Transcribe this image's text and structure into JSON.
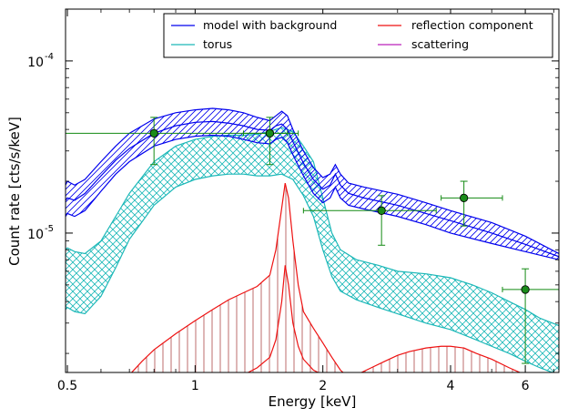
{
  "chart_data": {
    "type": "line",
    "title": "",
    "xlabel": "Energy [keV]",
    "ylabel": "Count rate [cts/s/keV]",
    "x_scale": "log",
    "y_scale": "log",
    "xlim": [
      0.495,
      7.2
    ],
    "ylim": [
      1.55e-06,
      0.0002
    ],
    "x_ticks": [
      {
        "value": 0.5,
        "label": "0.5"
      },
      {
        "value": 1,
        "label": "1"
      },
      {
        "value": 2,
        "label": "2"
      },
      {
        "value": 4,
        "label": "4"
      },
      {
        "value": 6,
        "label": "6"
      }
    ],
    "y_ticks": [
      {
        "value": 1e-05,
        "label_base": "10",
        "label_exp": "-5"
      },
      {
        "value": 0.0001,
        "label_base": "10",
        "label_exp": "-4"
      }
    ],
    "legend": {
      "placement": "top-right",
      "columns": 2,
      "entries": [
        {
          "name": "model with background",
          "color": "#0000ee"
        },
        {
          "name": "torus",
          "color": "#1cb8b8"
        },
        {
          "name": "reflection component",
          "color": "#ee1111"
        },
        {
          "name": "scattering",
          "color": "#bb22bb"
        }
      ]
    },
    "series": [
      {
        "name": "model with background",
        "color": "#0000ee",
        "style": "band-hatched",
        "x": [
          0.495,
          0.5,
          0.52,
          0.55,
          0.6,
          0.65,
          0.7,
          0.8,
          0.9,
          1.0,
          1.1,
          1.2,
          1.3,
          1.4,
          1.5,
          1.55,
          1.6,
          1.65,
          1.7,
          1.8,
          1.9,
          2.0,
          2.08,
          2.14,
          2.2,
          2.3,
          2.5,
          3.0,
          3.5,
          4.0,
          5.0,
          6.0,
          7.2
        ],
        "upper": [
          1.9e-05,
          2e-05,
          1.9e-05,
          2.05e-05,
          2.6e-05,
          3.2e-05,
          3.8e-05,
          4.6e-05,
          5e-05,
          5.2e-05,
          5.3e-05,
          5.2e-05,
          5e-05,
          4.7e-05,
          4.5e-05,
          4.8e-05,
          5.1e-05,
          4.8e-05,
          4e-05,
          3e-05,
          2.4e-05,
          2.1e-05,
          2.2e-05,
          2.5e-05,
          2.2e-05,
          1.95e-05,
          1.85e-05,
          1.68e-05,
          1.5e-05,
          1.35e-05,
          1.15e-05,
          9.6e-06,
          7.6e-06
        ],
        "mid": [
          1.55e-05,
          1.6e-05,
          1.55e-05,
          1.7e-05,
          2.15e-05,
          2.65e-05,
          3.1e-05,
          3.8e-05,
          4.2e-05,
          4.4e-05,
          4.45e-05,
          4.35e-05,
          4.2e-05,
          4e-05,
          3.95e-05,
          4.2e-05,
          4.3e-05,
          4e-05,
          3.4e-05,
          2.55e-05,
          2.05e-05,
          1.8e-05,
          1.9e-05,
          2.2e-05,
          1.9e-05,
          1.7e-05,
          1.6e-05,
          1.45e-05,
          1.3e-05,
          1.18e-05,
          1e-05,
          8.6e-06,
          7.3e-06
        ],
        "lower": [
          1.25e-05,
          1.3e-05,
          1.25e-05,
          1.35e-05,
          1.75e-05,
          2.2e-05,
          2.6e-05,
          3.2e-05,
          3.5e-05,
          3.65e-05,
          3.7e-05,
          3.65e-05,
          3.5e-05,
          3.35e-05,
          3.3e-05,
          3.5e-05,
          3.6e-05,
          3.35e-05,
          2.85e-05,
          2.15e-05,
          1.7e-05,
          1.5e-05,
          1.6e-05,
          1.85e-05,
          1.6e-05,
          1.45e-05,
          1.38e-05,
          1.25e-05,
          1.12e-05,
          1e-05,
          8.7e-06,
          7.8e-06,
          7e-06
        ]
      },
      {
        "name": "torus",
        "color": "#1cb8b8",
        "style": "band-crosshatched",
        "x": [
          0.495,
          0.5,
          0.52,
          0.55,
          0.6,
          0.65,
          0.7,
          0.8,
          0.9,
          1.0,
          1.1,
          1.2,
          1.3,
          1.4,
          1.5,
          1.6,
          1.7,
          1.8,
          1.9,
          2.0,
          2.1,
          2.2,
          2.4,
          2.7,
          3.0,
          3.5,
          4.0,
          4.5,
          5.0,
          5.5,
          6.0,
          6.5,
          7.2
        ],
        "upper": [
          8e-06,
          8.2e-06,
          7.8e-06,
          7.6e-06,
          9e-06,
          1.25e-05,
          1.7e-05,
          2.6e-05,
          3.2e-05,
          3.5e-05,
          3.65e-05,
          3.7e-05,
          3.7e-05,
          3.75e-05,
          3.9e-05,
          4.1e-05,
          3.9e-05,
          3.2e-05,
          2.6e-05,
          1.6e-05,
          1e-05,
          8e-06,
          7e-06,
          6.5e-06,
          6e-06,
          5.8e-06,
          5.5e-06,
          5e-06,
          4.5e-06,
          4e-06,
          3.6e-06,
          3.2e-06,
          2.9e-06
        ],
        "mid": [
          5.8e-06,
          6e-06,
          5.7e-06,
          5.5e-06,
          6.7e-06,
          9.5e-06,
          1.3e-05,
          2e-05,
          2.45e-05,
          2.7e-05,
          2.82e-05,
          2.85e-05,
          2.85e-05,
          2.85e-05,
          2.95e-05,
          3.05e-05,
          2.9e-05,
          2.4e-05,
          1.85e-05,
          1.15e-05,
          7.5e-06,
          6e-06,
          5.3e-06,
          4.9e-06,
          4.5e-06,
          4.2e-06,
          3.9e-06,
          3.5e-06,
          3.2e-06,
          2.9e-06,
          2.6e-06,
          2.35e-06,
          2.15e-06
        ],
        "lower": [
          3.6e-06,
          3.7e-06,
          3.5e-06,
          3.4e-06,
          4.3e-06,
          6.3e-06,
          9.2e-06,
          1.45e-05,
          1.85e-05,
          2.05e-05,
          2.15e-05,
          2.2e-05,
          2.2e-05,
          2.15e-05,
          2.15e-05,
          2.2e-05,
          2.05e-05,
          1.65e-05,
          1.25e-05,
          8e-06,
          5.6e-06,
          4.6e-06,
          4.1e-06,
          3.7e-06,
          3.4e-06,
          3e-06,
          2.75e-06,
          2.45e-06,
          2.2e-06,
          2e-06,
          1.8e-06,
          1.65e-06,
          1.5e-06
        ]
      },
      {
        "name": "reflection component",
        "color": "#ee1111",
        "style": "lines-with-vertical-fill",
        "curves": [
          {
            "x": [
              0.7,
              0.75,
              0.8,
              0.9,
              1.0,
              1.1,
              1.2,
              1.3,
              1.4,
              1.5,
              1.55,
              1.6,
              1.63,
              1.66,
              1.7,
              1.75,
              1.8,
              1.9,
              2.0,
              2.1,
              2.2,
              2.3
            ],
            "y": [
              1.5e-06,
              1.8e-06,
              2.1e-06,
              2.6e-06,
              3.1e-06,
              3.6e-06,
              4.1e-06,
              4.5e-06,
              4.9e-06,
              5.7e-06,
              8e-06,
              1.4e-05,
              1.95e-05,
              1.6e-05,
              9e-06,
              5e-06,
              3.5e-06,
              2.8e-06,
              2.3e-06,
              1.9e-06,
              1.6e-06,
              1.45e-06
            ]
          },
          {
            "x": [
              1.3,
              1.4,
              1.5,
              1.55,
              1.6,
              1.63,
              1.66,
              1.7,
              1.75,
              1.8,
              1.9,
              2.0
            ],
            "y": [
              1.5e-06,
              1.65e-06,
              1.9e-06,
              2.4e-06,
              4e-06,
              6.5e-06,
              5e-06,
              3e-06,
              2.2e-06,
              1.85e-06,
              1.6e-06,
              1.5e-06
            ]
          },
          {
            "x": [
              2.4,
              2.6,
              2.8,
              3.0,
              3.2,
              3.5,
              3.8,
              4.0,
              4.3,
              4.6,
              5.0,
              5.5,
              6.0
            ],
            "y": [
              1.5e-06,
              1.65e-06,
              1.8e-06,
              1.95e-06,
              2.05e-06,
              2.15e-06,
              2.2e-06,
              2.2e-06,
              2.15e-06,
              2e-06,
              1.85e-06,
              1.65e-06,
              1.5e-06
            ]
          }
        ]
      },
      {
        "name": "data",
        "color": "#138a13",
        "style": "errorbar",
        "points": [
          {
            "x": 0.8,
            "y": 3.8e-05,
            "xerr": [
              0.495,
              1.65
            ],
            "yerr": [
              2.5e-05,
              4.7e-05
            ]
          },
          {
            "x": 1.5,
            "y": 3.8e-05,
            "xerr": [
              1.3,
              1.75
            ],
            "yerr": [
              2.5e-05,
              4.7e-05
            ]
          },
          {
            "x": 2.75,
            "y": 1.35e-05,
            "xerr": [
              1.8,
              3.7
            ],
            "yerr": [
              8.5e-06,
              1.65e-05
            ]
          },
          {
            "x": 4.3,
            "y": 1.6e-05,
            "xerr": [
              3.8,
              5.3
            ],
            "yerr": [
              1.1e-05,
              2e-05
            ]
          },
          {
            "x": 6.0,
            "y": 4.7e-06,
            "xerr": [
              5.3,
              7.2
            ],
            "yerr": [
              1.75e-06,
              6.2e-06
            ]
          }
        ]
      }
    ]
  }
}
